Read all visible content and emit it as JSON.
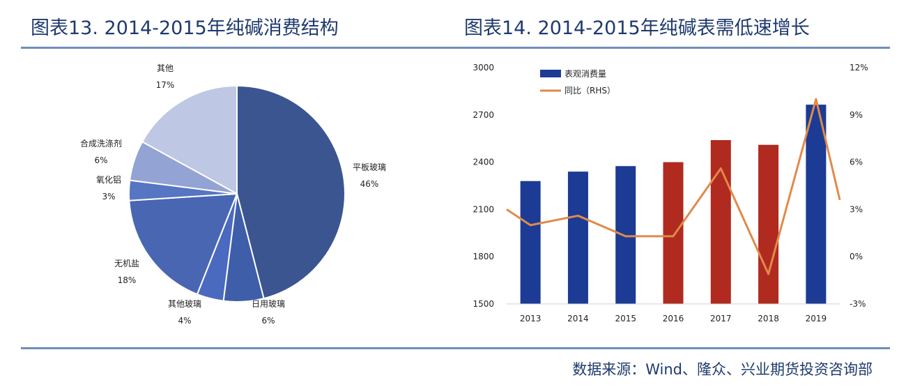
{
  "titles": {
    "left": "图表13. 2014-2015年纯碱消费结构",
    "right": "图表14. 2014-2015年纯碱表需低速增长"
  },
  "source": "数据来源：Wind、隆众、兴业期货投资咨询部",
  "chart_data": [
    {
      "type": "pie",
      "title": "2014-2015年纯碱消费结构",
      "slices": [
        {
          "label": "平板玻璃",
          "pct_label": "46%",
          "value": 46,
          "color": "#3b5591"
        },
        {
          "label": "日用玻璃",
          "pct_label": "6%",
          "value": 6,
          "color": "#3f5ea9"
        },
        {
          "label": "其他玻璃",
          "pct_label": "4%",
          "value": 4,
          "color": "#4a6ac0"
        },
        {
          "label": "无机盐",
          "pct_label": "18%",
          "value": 18,
          "color": "#4966b3"
        },
        {
          "label": "氧化铝",
          "pct_label": "3%",
          "value": 3,
          "color": "#5675c2"
        },
        {
          "label": "合成洗涤剂",
          "pct_label": "6%",
          "value": 6,
          "color": "#93a3d3"
        },
        {
          "label": "其他",
          "pct_label": "17%",
          "value": 17,
          "color": "#bec7e3"
        }
      ]
    },
    {
      "type": "bar",
      "title": "2014-2015年纯碱表需低速增长",
      "categories": [
        "2013",
        "2014",
        "2015",
        "2016",
        "2017",
        "2018",
        "2019"
      ],
      "series": [
        {
          "name": "表观消费量",
          "axis": "left",
          "values": [
            2280,
            2340,
            2375,
            2400,
            2540,
            2510,
            2765
          ],
          "colors": [
            "#1c3b94",
            "#1c3b94",
            "#1c3b94",
            "#b02a1f",
            "#b02a1f",
            "#b02a1f",
            "#1c3b94"
          ]
        },
        {
          "name": "同比（RHS）",
          "type": "line",
          "axis": "right",
          "color": "#e08a4a",
          "values": [
            2.0,
            2.6,
            1.3,
            1.3,
            5.6,
            -1.1,
            10.0
          ],
          "left_edge_value": 3.0,
          "right_edge_value": 3.6
        }
      ],
      "y_left": {
        "min": 1500,
        "max": 3000,
        "ticks": [
          "1500",
          "1800",
          "2100",
          "2400",
          "2700",
          "3000"
        ]
      },
      "y_right": {
        "min": -3,
        "max": 12,
        "ticks": [
          "-3%",
          "0%",
          "3%",
          "6%",
          "9%",
          "12%"
        ]
      },
      "legend": [
        "表观消费量",
        "同比（RHS）"
      ]
    }
  ]
}
